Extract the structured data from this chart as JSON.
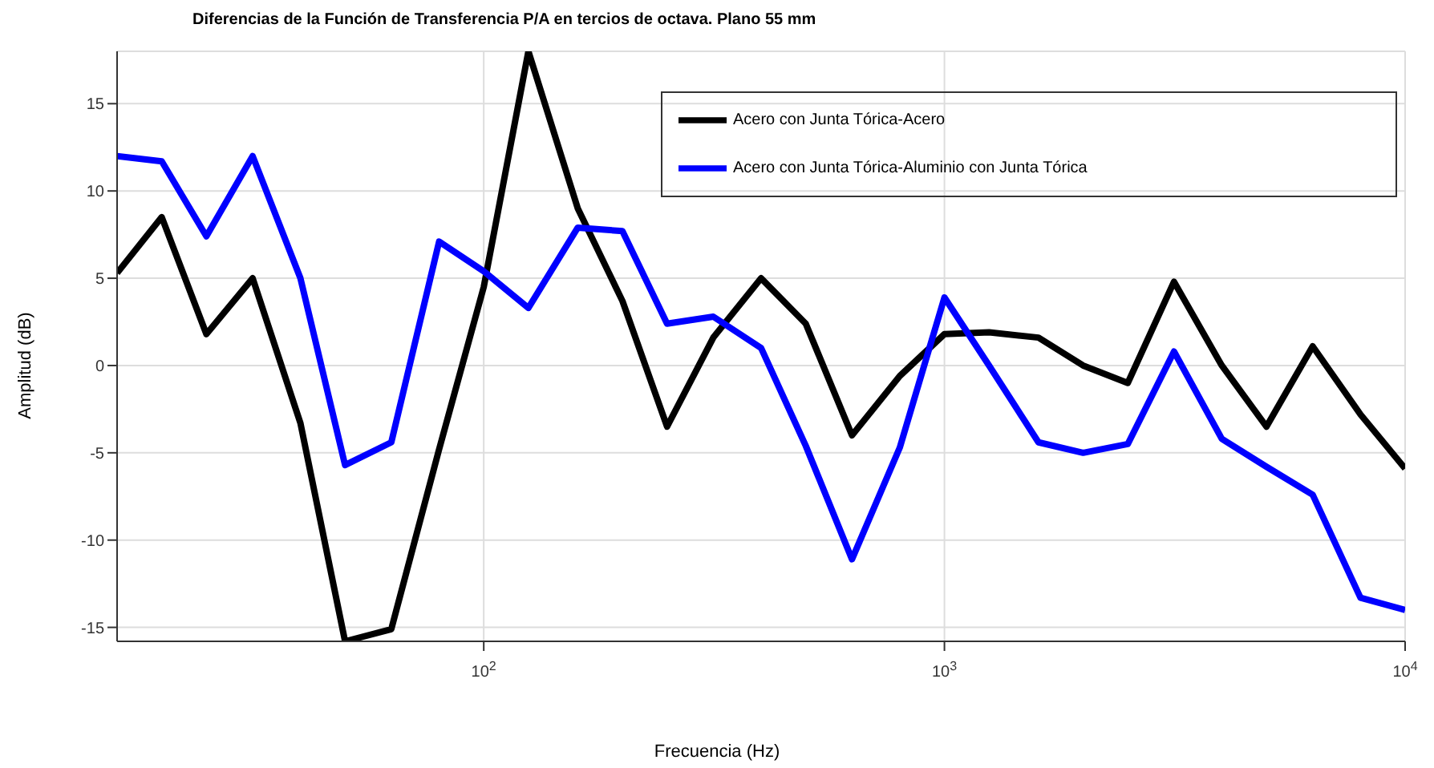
{
  "chart_data": {
    "type": "line",
    "title": "Diferencias de la Función de Transferencia P/A en tercios de octava. Plano 55 mm",
    "xlabel": "Frecuencia (Hz)",
    "ylabel": "Amplitud (dB)",
    "x": [
      16,
      20,
      25,
      31.5,
      40,
      50,
      63,
      80,
      100,
      125,
      160,
      200,
      250,
      315,
      400,
      500,
      630,
      800,
      1000,
      1250,
      1600,
      2000,
      2500,
      3150,
      4000,
      5000,
      6300,
      8000,
      10000
    ],
    "series": [
      {
        "name": "Acero con Junta Tórica-Acero",
        "color": "#000000",
        "values": [
          5.3,
          8.5,
          1.8,
          5,
          -3.3,
          -15.8,
          -15.1,
          -4.8,
          4.5,
          18,
          9,
          3.7,
          -3.5,
          1.6,
          5,
          2.4,
          -4,
          -0.6,
          1.8,
          1.9,
          1.6,
          0,
          -1,
          4.8,
          0,
          -3.5,
          1.1,
          -2.8,
          -5.9
        ]
      },
      {
        "name": "Acero con Junta Tórica-Aluminio con Junta Tórica",
        "color": "#0000ff",
        "values": [
          12,
          11.7,
          7.4,
          12,
          5,
          -5.7,
          -4.4,
          7.1,
          5.4,
          3.3,
          7.9,
          7.7,
          2.4,
          2.8,
          1,
          -4.6,
          -11.1,
          -4.7,
          3.9,
          0,
          -4.4,
          -5,
          -4.5,
          0.8,
          -4.2,
          -5.8,
          -7.4,
          -13.3,
          -14
        ]
      }
    ],
    "log": "x",
    "xlim": [
      16,
      10000
    ],
    "xticks": [
      {
        "value": 100,
        "label": "10$^{2}$"
      },
      {
        "value": 1000,
        "label": "10$^{3}$"
      },
      {
        "value": 10000,
        "label": "10$^{4}$"
      }
    ],
    "ylim": [
      -15.8,
      18
    ],
    "yticks": [
      -15,
      -10,
      -5,
      0,
      5,
      10,
      15
    ],
    "grid": true,
    "legend": "top right",
    "marker": "none",
    "line_style": "solid"
  }
}
